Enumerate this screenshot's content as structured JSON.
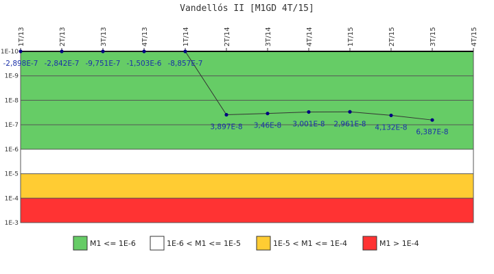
{
  "chart_data": {
    "type": "line",
    "title": "Vandellós II [M1GD 4T/15]",
    "x_categories": [
      "1T/13",
      "2T/13",
      "3T/13",
      "4T/13",
      "1T/14",
      "2T/14",
      "3T/14",
      "4T/14",
      "1T/15",
      "2T/15",
      "3T/15",
      "4T/15"
    ],
    "y_scale": "log",
    "y_axis_reversed": true,
    "y_ticks": [
      "1E-10",
      "1E-9",
      "1E-8",
      "1E-7",
      "1E-6",
      "1E-5",
      "1E-4",
      "1E-3"
    ],
    "ylim": [
      1e-10,
      0.001
    ],
    "series": [
      {
        "color": "#000080",
        "line_color": "#333333",
        "points": [
          {
            "x": "1T/13",
            "y": 1e-10,
            "label": "-2,898E-7"
          },
          {
            "x": "2T/13",
            "y": 1e-10,
            "label": "-2,842E-7"
          },
          {
            "x": "3T/13",
            "y": 1e-10,
            "label": "-9,751E-7"
          },
          {
            "x": "4T/13",
            "y": 1e-10,
            "label": "-1,503E-6"
          },
          {
            "x": "1T/14",
            "y": 1e-10,
            "label": "-8,857E-7"
          },
          {
            "x": "2T/14",
            "y": 3.897e-08,
            "label": "3,897E-8"
          },
          {
            "x": "3T/14",
            "y": 3.46e-08,
            "label": "3,46E-8"
          },
          {
            "x": "4T/14",
            "y": 3.001e-08,
            "label": "3,001E-8"
          },
          {
            "x": "1T/15",
            "y": 2.961e-08,
            "label": "2,961E-8"
          },
          {
            "x": "2T/15",
            "y": 4.132e-08,
            "label": "4,132E-8"
          },
          {
            "x": "3T/15",
            "y": 6.387e-08,
            "label": "6,387E-8"
          }
        ]
      }
    ],
    "bands": [
      {
        "from": 1e-10,
        "to": 1e-06,
        "color": "#66cc66"
      },
      {
        "from": 1e-06,
        "to": 1e-05,
        "color": "#ffffff"
      },
      {
        "from": 1e-05,
        "to": 0.0001,
        "color": "#ffcc33"
      },
      {
        "from": 0.0001,
        "to": 0.001,
        "color": "#ff3333"
      }
    ],
    "legend": {
      "position": "bottom",
      "items": [
        {
          "label": "M1 <= 1E-6",
          "color": "#66cc66"
        },
        {
          "label": "1E-6 < M1 <= 1E-5",
          "color": "#ffffff"
        },
        {
          "label": "1E-5 < M1 <= 1E-4",
          "color": "#ffcc33"
        },
        {
          "label": "M1 > 1E-4",
          "color": "#ff3333"
        }
      ]
    },
    "grid": false
  }
}
